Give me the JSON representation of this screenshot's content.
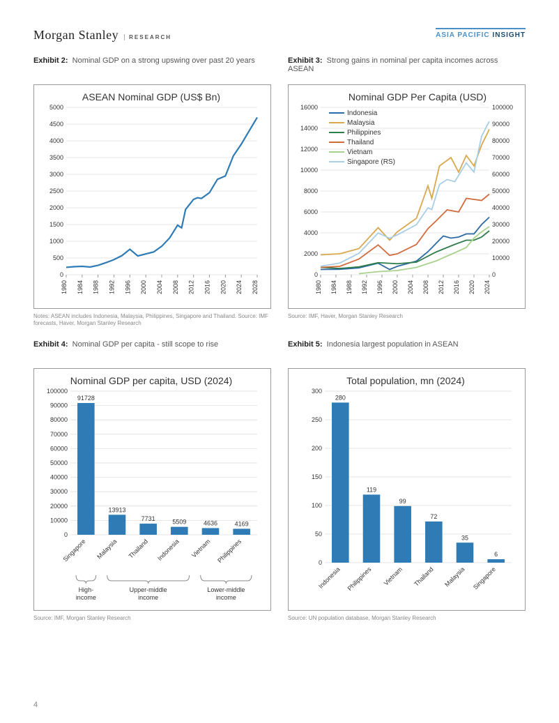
{
  "header": {
    "brand": "Morgan Stanley",
    "research": "RESEARCH",
    "asia": "ASIA PACIFIC",
    "insight": "INSIGHT"
  },
  "pageNumber": "4",
  "ex2": {
    "label": "Exhibit 2:",
    "caption": "Nominal GDP on a strong upswing over past 20 years",
    "title": "ASEAN Nominal GDP (US$ Bn)",
    "y_max": 5000,
    "y_step": 500,
    "x_min": 1980,
    "x_max": 2028,
    "x_step": 4,
    "line_color": "#2e7bb5",
    "line_width": 2.2,
    "grid_color": "#dddddd",
    "series": [
      [
        1980,
        220
      ],
      [
        1982,
        240
      ],
      [
        1984,
        250
      ],
      [
        1986,
        230
      ],
      [
        1988,
        280
      ],
      [
        1990,
        360
      ],
      [
        1992,
        450
      ],
      [
        1994,
        570
      ],
      [
        1996,
        760
      ],
      [
        1998,
        560
      ],
      [
        2000,
        620
      ],
      [
        2002,
        680
      ],
      [
        2004,
        850
      ],
      [
        2006,
        1100
      ],
      [
        2008,
        1480
      ],
      [
        2009,
        1400
      ],
      [
        2010,
        1950
      ],
      [
        2012,
        2250
      ],
      [
        2013,
        2300
      ],
      [
        2014,
        2280
      ],
      [
        2016,
        2450
      ],
      [
        2018,
        2850
      ],
      [
        2020,
        2950
      ],
      [
        2022,
        3550
      ],
      [
        2024,
        3900
      ],
      [
        2026,
        4300
      ],
      [
        2028,
        4700
      ]
    ],
    "note": "Notes: ASEAN includes Indonesia, Malaysia, Philippines, Singapore and Thailand. Source: IMF forecasts, Haver, Morgan Stanley Research"
  },
  "ex3": {
    "label": "Exhibit 3:",
    "caption": "Strong gains in nominal per capita incomes across ASEAN",
    "title": "Nominal GDP Per Capita (USD)",
    "y1_max": 16000,
    "y1_step": 2000,
    "y2_max": 100000,
    "y2_step": 10000,
    "x_min": 1980,
    "x_max": 2024,
    "x_step": 4,
    "grid_color": "#dddddd",
    "legend": [
      {
        "name": "Indonesia",
        "color": "#2d6aa3"
      },
      {
        "name": "Malaysia",
        "color": "#d9a84e"
      },
      {
        "name": "Philippines",
        "color": "#2e7d4a"
      },
      {
        "name": "Thailand",
        "color": "#d26b3e"
      },
      {
        "name": "Vietnam",
        "color": "#a9d18e"
      },
      {
        "name": "Singapore (RS)",
        "color": "#a8cde6"
      }
    ],
    "series": {
      "Indonesia": [
        [
          1980,
          500
        ],
        [
          1985,
          520
        ],
        [
          1990,
          650
        ],
        [
          1995,
          1100
        ],
        [
          1998,
          500
        ],
        [
          2000,
          800
        ],
        [
          2005,
          1300
        ],
        [
          2008,
          2200
        ],
        [
          2010,
          2950
        ],
        [
          2012,
          3700
        ],
        [
          2014,
          3500
        ],
        [
          2016,
          3600
        ],
        [
          2018,
          3900
        ],
        [
          2020,
          3900
        ],
        [
          2022,
          4800
        ],
        [
          2024,
          5500
        ]
      ],
      "Malaysia": [
        [
          1980,
          1900
        ],
        [
          1985,
          2000
        ],
        [
          1990,
          2500
        ],
        [
          1995,
          4500
        ],
        [
          1998,
          3300
        ],
        [
          2000,
          4100
        ],
        [
          2005,
          5400
        ],
        [
          2008,
          8500
        ],
        [
          2009,
          7300
        ],
        [
          2011,
          10400
        ],
        [
          2014,
          11200
        ],
        [
          2016,
          9800
        ],
        [
          2018,
          11400
        ],
        [
          2020,
          10400
        ],
        [
          2022,
          12400
        ],
        [
          2024,
          13900
        ]
      ],
      "Philippines": [
        [
          1980,
          700
        ],
        [
          1985,
          600
        ],
        [
          1990,
          750
        ],
        [
          1995,
          1150
        ],
        [
          2000,
          1050
        ],
        [
          2005,
          1200
        ],
        [
          2010,
          2150
        ],
        [
          2015,
          2900
        ],
        [
          2018,
          3300
        ],
        [
          2020,
          3300
        ],
        [
          2022,
          3600
        ],
        [
          2024,
          4200
        ]
      ],
      "Thailand": [
        [
          1980,
          700
        ],
        [
          1985,
          800
        ],
        [
          1990,
          1500
        ],
        [
          1995,
          2850
        ],
        [
          1998,
          1850
        ],
        [
          2000,
          2000
        ],
        [
          2005,
          2900
        ],
        [
          2008,
          4400
        ],
        [
          2010,
          5100
        ],
        [
          2013,
          6200
        ],
        [
          2016,
          6000
        ],
        [
          2018,
          7300
        ],
        [
          2020,
          7200
        ],
        [
          2022,
          7100
        ],
        [
          2024,
          7700
        ]
      ],
      "Vietnam": [
        [
          1990,
          100
        ],
        [
          1995,
          290
        ],
        [
          2000,
          400
        ],
        [
          2005,
          700
        ],
        [
          2010,
          1300
        ],
        [
          2015,
          2100
        ],
        [
          2018,
          2600
        ],
        [
          2020,
          3500
        ],
        [
          2022,
          4100
        ],
        [
          2024,
          4600
        ]
      ],
      "Singapore": [
        [
          1980,
          5000
        ],
        [
          1985,
          7000
        ],
        [
          1990,
          12800
        ],
        [
          1995,
          24900
        ],
        [
          1998,
          21800
        ],
        [
          2000,
          23800
        ],
        [
          2005,
          29900
        ],
        [
          2008,
          40000
        ],
        [
          2009,
          38900
        ],
        [
          2011,
          53900
        ],
        [
          2013,
          56900
        ],
        [
          2015,
          55600
        ],
        [
          2018,
          66800
        ],
        [
          2020,
          61300
        ],
        [
          2022,
          82800
        ],
        [
          2024,
          91700
        ]
      ]
    },
    "note": "Source: IMF, Haver, Morgan Stanley Research"
  },
  "ex4": {
    "label": "Exhibit 4:",
    "caption": "Nominal GDP per capita - still scope to rise",
    "title": "Nominal GDP per capita, USD (2024)",
    "y_max": 100000,
    "y_step": 10000,
    "bar_color": "#2e7bb5",
    "grid_color": "#dddddd",
    "categories": [
      "Singapore",
      "Malaysia",
      "Thailand",
      "Indonesia",
      "Vietnam",
      "Philippines"
    ],
    "values": [
      91728,
      13913,
      7731,
      5509,
      4636,
      4169
    ],
    "brackets": [
      {
        "label": "High-income",
        "cols": [
          0,
          0
        ]
      },
      {
        "label": "Upper-middle income",
        "cols": [
          1,
          3
        ]
      },
      {
        "label": "Lower-middle income",
        "cols": [
          4,
          5
        ]
      }
    ],
    "note": "Source: IMF, Morgan Stanley Research"
  },
  "ex5": {
    "label": "Exhibit 5:",
    "caption": "Indonesia largest population in ASEAN",
    "title": "Total population, mn (2024)",
    "y_max": 300,
    "y_step": 50,
    "bar_color": "#2e7bb5",
    "grid_color": "#dddddd",
    "categories": [
      "Indonesia",
      "Philippines",
      "Vietnam",
      "Thailand",
      "Malaysia",
      "Singapore"
    ],
    "values": [
      280,
      119,
      99,
      72,
      35,
      6
    ],
    "note": "Source: UN population database, Morgan Stanley Research"
  }
}
